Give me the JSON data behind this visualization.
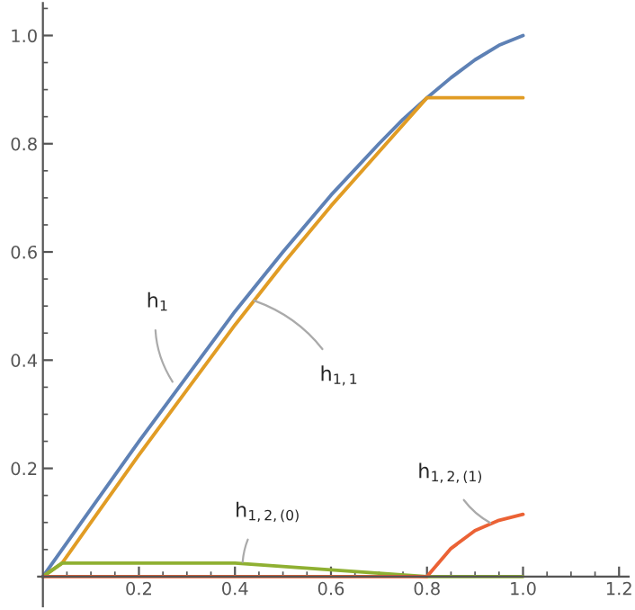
{
  "chart_data": {
    "type": "line",
    "series": [
      {
        "color": "#5e81b5",
        "x": [
          0,
          0.1,
          0.2,
          0.3,
          0.4,
          0.5,
          0.6,
          0.7,
          0.75,
          0.8,
          0.85,
          0.9,
          0.95,
          1.0
        ],
        "values": [
          0,
          0.125,
          0.25,
          0.37,
          0.49,
          0.6,
          0.705,
          0.8,
          0.845,
          0.885,
          0.922,
          0.955,
          0.982,
          1.0
        ]
      },
      {
        "color": "#e19c24",
        "x": [
          0,
          0.04,
          0.1,
          0.2,
          0.3,
          0.4,
          0.5,
          0.6,
          0.7,
          0.8,
          1.0
        ],
        "values": [
          0,
          0.025,
          0.1,
          0.225,
          0.345,
          0.465,
          0.578,
          0.685,
          0.785,
          0.885,
          0.885
        ]
      },
      {
        "color": "#8fb032",
        "x": [
          0,
          0.04,
          0.4,
          0.8,
          1.0
        ],
        "values": [
          0,
          0.025,
          0.025,
          0,
          0
        ]
      },
      {
        "color": "#eb6235",
        "x": [
          0,
          0.8,
          0.85,
          0.9,
          0.95,
          1.0
        ],
        "values": [
          0,
          0,
          0.052,
          0.085,
          0.104,
          0.115
        ]
      }
    ],
    "annotations": [
      {
        "text": "h$_{1}$",
        "x": 0.27,
        "y": 0.36
      },
      {
        "text": "h$_{1,1}$",
        "x": 0.44,
        "y": 0.51
      },
      {
        "text": "h$_{1,2,(0)}$",
        "x": 0.416,
        "y": 0.027
      },
      {
        "text": "h$_{1,2,(1)}$",
        "x": 0.932,
        "y": 0.099
      }
    ],
    "xlim": [
      -0.01,
      1.22
    ],
    "ylim": [
      -0.055,
      1.06
    ],
    "xticks": [
      {
        "value": 0.05,
        "label": null
      },
      {
        "value": 0.1,
        "label": null
      },
      {
        "value": 0.15,
        "label": null
      },
      0.2,
      {
        "value": 0.25,
        "label": null
      },
      {
        "value": 0.3,
        "label": null
      },
      {
        "value": 0.35,
        "label": null
      },
      0.4,
      {
        "value": 0.45,
        "label": null
      },
      {
        "value": 0.5,
        "label": null
      },
      {
        "value": 0.55,
        "label": null
      },
      0.6,
      {
        "value": 0.65,
        "label": null
      },
      {
        "value": 0.7,
        "label": null
      },
      {
        "value": 0.75,
        "label": null
      },
      0.8,
      {
        "value": 0.85,
        "label": null
      },
      {
        "value": 0.9,
        "label": null
      },
      {
        "value": 0.95,
        "label": null
      },
      {
        "value": 1.0,
        "label": "1.0"
      },
      {
        "value": 1.05,
        "label": null
      },
      {
        "value": 1.1,
        "label": null
      },
      {
        "value": 1.15,
        "label": null
      },
      1.2
    ],
    "yticks": [
      {
        "value": 0.05,
        "label": null
      },
      {
        "value": 0.1,
        "label": null
      },
      {
        "value": 0.15,
        "label": null
      },
      0.2,
      {
        "value": 0.25,
        "label": null
      },
      {
        "value": 0.3,
        "label": null
      },
      {
        "value": 0.35,
        "label": null
      },
      0.4,
      {
        "value": 0.45,
        "label": null
      },
      {
        "value": 0.5,
        "label": null
      },
      {
        "value": 0.55,
        "label": null
      },
      0.6,
      {
        "value": 0.65,
        "label": null
      },
      {
        "value": 0.7,
        "label": null
      },
      {
        "value": 0.75,
        "label": null
      },
      0.8,
      {
        "value": 0.85,
        "label": null
      },
      {
        "value": 0.9,
        "label": null
      },
      {
        "value": 0.95,
        "label": null
      },
      {
        "value": 1.0,
        "label": "1.0"
      },
      {
        "value": 1.05,
        "label": null
      }
    ],
    "grid": false,
    "legend": false,
    "marker": "none",
    "line_style": "solid"
  }
}
